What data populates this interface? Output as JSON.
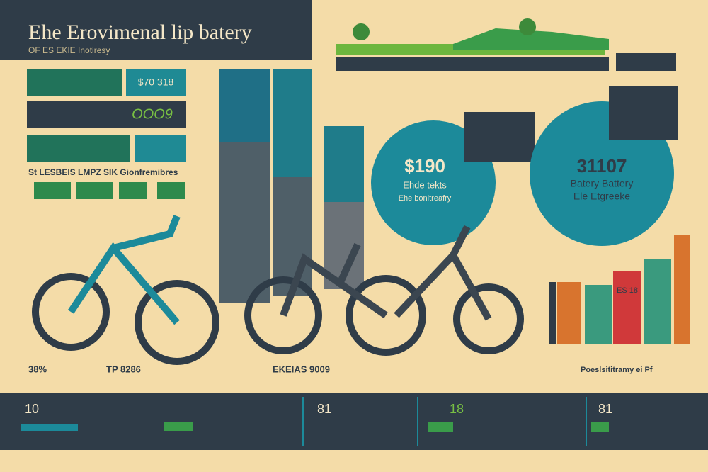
{
  "header": {
    "title": "Ehe Erovimenal lip batery",
    "subtitle": "OF ES EKIE Inotiresy"
  },
  "left_panel": {
    "row_labels": [
      "$70 318",
      "OOO9"
    ],
    "caption": "St LESBEIS LMPZ  SIK Gionfremibres"
  },
  "callouts": [
    {
      "value": "$190",
      "label": "Ehde tekts",
      "note": "Ehe bonitreafry"
    },
    {
      "value": "31107",
      "label": "Batery Battery",
      "note": "Ele Etgreeke"
    }
  ],
  "bar_label": "ES 18",
  "bottom_labels": [
    "38%",
    "TP 8286",
    "EKEIAS 9009",
    "Poeslsititramy ei Pf"
  ],
  "footer_stats": [
    "10",
    "81",
    "18",
    "81"
  ]
}
